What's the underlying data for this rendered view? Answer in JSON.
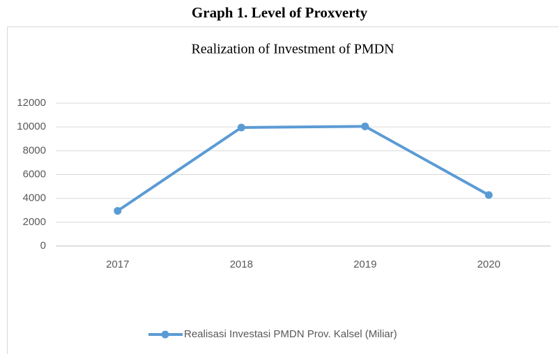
{
  "caption": "Graph 1. Level of Proxverty",
  "chart_data": {
    "type": "line",
    "title": "Realization of Investment of PMDN",
    "categories": [
      "2017",
      "2018",
      "2019",
      "2020"
    ],
    "series": [
      {
        "name": "Realisasi Investasi PMDN Prov. Kalsel (Miliar)",
        "color": "#5b9bd5",
        "values": [
          2950,
          9950,
          10050,
          4280
        ]
      }
    ],
    "ylim": [
      0,
      12000
    ],
    "yticks": [
      0,
      2000,
      4000,
      6000,
      8000,
      10000,
      12000
    ],
    "grid": true,
    "legend": "bottom"
  }
}
